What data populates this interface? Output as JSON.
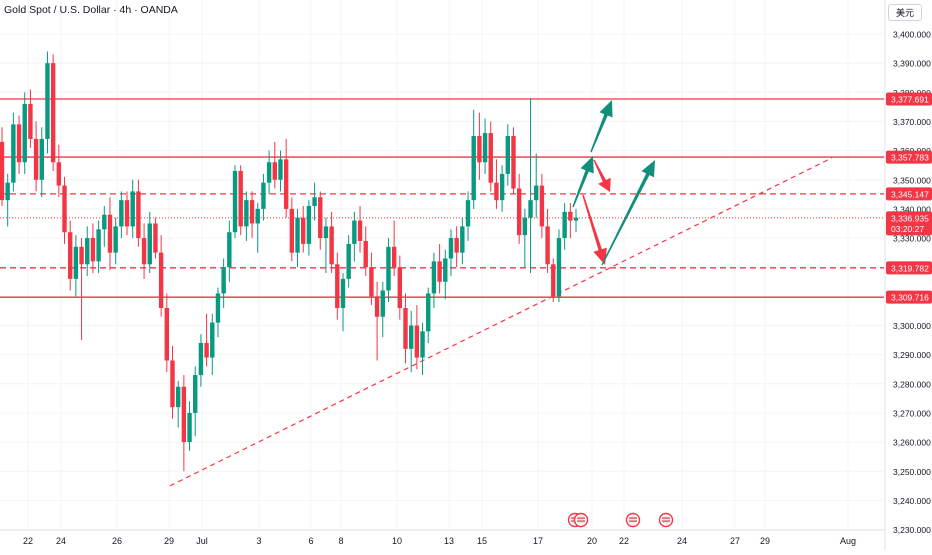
{
  "header": {
    "title": "Gold Spot / U.S. Dollar · 4h · OANDA",
    "currency": "美元"
  },
  "chart_data": {
    "type": "candlestick",
    "x_tick_labels": [
      "22",
      "24",
      "26",
      "29",
      "Jul",
      "3",
      "6",
      "8",
      "10",
      "13",
      "15",
      "17",
      "20",
      "22",
      "24",
      "27",
      "29",
      "Aug"
    ],
    "y_tick_labels": [
      "3,400.000",
      "3,390.000",
      "3,380.000",
      "3,370.000",
      "3,360.000",
      "3,350.000",
      "3,340.000",
      "3,330.000",
      "3,320.000",
      "3,310.000",
      "3,300.000",
      "3,290.000",
      "3,280.000",
      "3,270.000",
      "3,260.000",
      "3,250.000",
      "3,240.000",
      "3,230.000"
    ],
    "ylim": [
      3230,
      3405
    ],
    "colors": {
      "up": "#089981",
      "down": "#f23645",
      "level": "#f23645",
      "arrow_up": "#118f7a",
      "arrow_down": "#f23645"
    },
    "horizontal_levels": [
      {
        "label": "3,377.691",
        "value": 3377.691,
        "style": "solid"
      },
      {
        "label": "3,357.783",
        "value": 3357.783,
        "style": "solid"
      },
      {
        "label": "3,345.147",
        "value": 3345.147,
        "style": "dashed"
      },
      {
        "label": "3,319.782",
        "value": 3319.782,
        "style": "dashed"
      },
      {
        "label": "3,309.716",
        "value": 3309.716,
        "style": "solid"
      }
    ],
    "current_price": {
      "label": "3,336.935",
      "value": 3336.935,
      "countdown": "03:20:27"
    },
    "trendline": {
      "from": [
        3245,
        0
      ],
      "to": [
        3357.5,
        1
      ]
    },
    "candles": [
      [
        3363,
        3368,
        3341,
        3343
      ],
      [
        3343,
        3352,
        3334,
        3349
      ],
      [
        3349,
        3373,
        3346,
        3369
      ],
      [
        3369,
        3372,
        3352,
        3356
      ],
      [
        3356,
        3380,
        3352,
        3376
      ],
      [
        3376,
        3381,
        3361,
        3364
      ],
      [
        3364,
        3370,
        3346,
        3350
      ],
      [
        3350,
        3368,
        3344,
        3364
      ],
      [
        3364,
        3394,
        3359,
        3390
      ],
      [
        3390,
        3393,
        3353,
        3356
      ],
      [
        3356,
        3362,
        3344,
        3348
      ],
      [
        3348,
        3351,
        3328,
        3332
      ],
      [
        3332,
        3336,
        3312,
        3316
      ],
      [
        3316,
        3331,
        3310,
        3327
      ],
      [
        3327,
        3330,
        3295,
        3321
      ],
      [
        3321,
        3334,
        3317,
        3330
      ],
      [
        3330,
        3335,
        3318,
        3322
      ],
      [
        3322,
        3336,
        3318,
        3333
      ],
      [
        3333,
        3341,
        3327,
        3338
      ],
      [
        3338,
        3344,
        3319,
        3325
      ],
      [
        3325,
        3337,
        3321,
        3334
      ],
      [
        3334,
        3346,
        3330,
        3343
      ],
      [
        3343,
        3346,
        3331,
        3334
      ],
      [
        3334,
        3350,
        3330,
        3346
      ],
      [
        3346,
        3350,
        3327,
        3330
      ],
      [
        3330,
        3335,
        3316,
        3321
      ],
      [
        3321,
        3339,
        3318,
        3335
      ],
      [
        3335,
        3337,
        3323,
        3325
      ],
      [
        3325,
        3331,
        3303,
        3306
      ],
      [
        3306,
        3311,
        3284,
        3288
      ],
      [
        3288,
        3293,
        3268,
        3272
      ],
      [
        3272,
        3281,
        3265,
        3279
      ],
      [
        3279,
        3283,
        3250,
        3260
      ],
      [
        3260,
        3274,
        3257,
        3270
      ],
      [
        3270,
        3286,
        3262,
        3283
      ],
      [
        3283,
        3297,
        3279,
        3294
      ],
      [
        3294,
        3304,
        3286,
        3289
      ],
      [
        3289,
        3304,
        3283,
        3301
      ],
      [
        3301,
        3313,
        3296,
        3311
      ],
      [
        3311,
        3323,
        3306,
        3320
      ],
      [
        3320,
        3336,
        3315,
        3332
      ],
      [
        3332,
        3355,
        3330,
        3353
      ],
      [
        3353,
        3355,
        3331,
        3334
      ],
      [
        3334,
        3346,
        3329,
        3343
      ],
      [
        3343,
        3346,
        3330,
        3335
      ],
      [
        3335,
        3342,
        3325,
        3340
      ],
      [
        3340,
        3352,
        3336,
        3349
      ],
      [
        3349,
        3360,
        3345,
        3356
      ],
      [
        3356,
        3363,
        3347,
        3350
      ],
      [
        3350,
        3360,
        3346,
        3357
      ],
      [
        3357,
        3364,
        3337,
        3340
      ],
      [
        3340,
        3344,
        3322,
        3325
      ],
      [
        3325,
        3340,
        3320,
        3337
      ],
      [
        3337,
        3341,
        3325,
        3328
      ],
      [
        3328,
        3343,
        3324,
        3341
      ],
      [
        3341,
        3349,
        3336,
        3344
      ],
      [
        3344,
        3346,
        3326,
        3330
      ],
      [
        3330,
        3337,
        3318,
        3334
      ],
      [
        3334,
        3339,
        3318,
        3321
      ],
      [
        3321,
        3325,
        3302,
        3306
      ],
      [
        3306,
        3318,
        3298,
        3316
      ],
      [
        3316,
        3331,
        3313,
        3328
      ],
      [
        3328,
        3339,
        3322,
        3336
      ],
      [
        3336,
        3341,
        3325,
        3329
      ],
      [
        3329,
        3334,
        3317,
        3320
      ],
      [
        3320,
        3325,
        3307,
        3310
      ],
      [
        3310,
        3315,
        3288,
        3303
      ],
      [
        3303,
        3315,
        3296,
        3312
      ],
      [
        3312,
        3330,
        3308,
        3327
      ],
      [
        3327,
        3336,
        3317,
        3320
      ],
      [
        3320,
        3324,
        3302,
        3306
      ],
      [
        3306,
        3311,
        3287,
        3292
      ],
      [
        3292,
        3305,
        3284,
        3300
      ],
      [
        3300,
        3307,
        3285,
        3289
      ],
      [
        3289,
        3301,
        3283,
        3298
      ],
      [
        3298,
        3313,
        3294,
        3311
      ],
      [
        3311,
        3325,
        3306,
        3322
      ],
      [
        3322,
        3328,
        3311,
        3315
      ],
      [
        3315,
        3326,
        3309,
        3323
      ],
      [
        3323,
        3333,
        3317,
        3330
      ],
      [
        3330,
        3334,
        3320,
        3325
      ],
      [
        3325,
        3337,
        3321,
        3334
      ],
      [
        3334,
        3346,
        3329,
        3343
      ],
      [
        3343,
        3374,
        3340,
        3365
      ],
      [
        3365,
        3373,
        3350,
        3356
      ],
      [
        3356,
        3371,
        3352,
        3366
      ],
      [
        3366,
        3370,
        3346,
        3349
      ],
      [
        3349,
        3357,
        3340,
        3343
      ],
      [
        3343,
        3355,
        3339,
        3352
      ],
      [
        3352,
        3369,
        3348,
        3365
      ],
      [
        3365,
        3368,
        3345,
        3347
      ],
      [
        3347,
        3352,
        3328,
        3331
      ],
      [
        3331,
        3340,
        3320,
        3337
      ],
      [
        3337,
        3378,
        3318,
        3343
      ],
      [
        3343,
        3359,
        3337,
        3348
      ],
      [
        3348,
        3352,
        3330,
        3334
      ],
      [
        3334,
        3340,
        3318,
        3321
      ],
      [
        3321,
        3323,
        3308,
        3310
      ],
      [
        3310,
        3333,
        3308,
        3330
      ],
      [
        3330,
        3342,
        3326,
        3339
      ],
      [
        3339,
        3342,
        3330,
        3336
      ],
      [
        3336,
        3340,
        3332,
        3337
      ]
    ],
    "annotations": [
      {
        "type": "arrow-up",
        "from": [
          3334,
          0.0
        ],
        "to": [
          3359,
          0.0
        ]
      },
      {
        "type": "arrow-down",
        "from": [
          3350,
          0.0
        ],
        "to": [
          3345,
          0.0
        ]
      },
      {
        "type": "arrow-down",
        "from": [
          3342,
          0.0
        ],
        "to": [
          3320,
          0.0
        ]
      },
      {
        "type": "arrow-up",
        "from": [
          3320,
          0.0
        ],
        "to": [
          3358,
          0.0
        ]
      },
      {
        "type": "arrow-up",
        "from": [
          3359,
          0.0
        ],
        "to": [
          3377,
          0.0
        ]
      }
    ],
    "event_icons": [
      "us-flag-icon",
      "us-flag-icon",
      "us-flag-icon",
      "us-flag-icon",
      "us-flag-icon"
    ]
  }
}
